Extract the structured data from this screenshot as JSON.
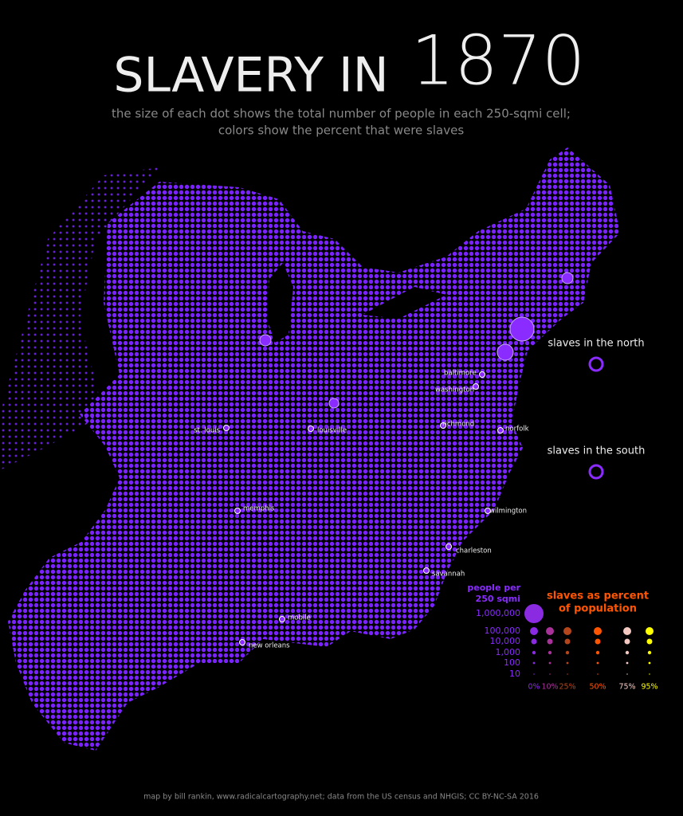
{
  "header": {
    "title": "SLAVERY IN",
    "year": "1870",
    "subtitle": [
      "the size of each dot shows the total number of people in each 250-sqmi cell;",
      "colors show the percent that were slaves"
    ]
  },
  "cities": [
    {
      "label": "baltimore"
    },
    {
      "label": "washington"
    },
    {
      "label": "richmond"
    },
    {
      "label": "norfolk"
    },
    {
      "label": "st. louis"
    },
    {
      "label": "louisville"
    },
    {
      "label": "memphis"
    },
    {
      "label": "wilmington"
    },
    {
      "label": "charleston"
    },
    {
      "label": "savannah"
    },
    {
      "label": "mobile"
    },
    {
      "label": "new orleans"
    }
  ],
  "side_legend": [
    {
      "label": "slaves in the north"
    },
    {
      "label": "slaves in the south"
    }
  ],
  "legend": {
    "size_title": [
      "people per",
      "250 sqmi"
    ],
    "sizes": [
      "1,000,000",
      "100,000",
      "10,000",
      "1,000",
      "100",
      "10"
    ],
    "color_title": [
      "slaves as percent",
      "of population"
    ],
    "colors": [
      {
        "label": "0%",
        "color": "#8a2be2"
      },
      {
        "label": "10%",
        "color": "#a8329a"
      },
      {
        "label": "25%",
        "color": "#b5461c"
      },
      {
        "label": "50%",
        "color": "#ff5500"
      },
      {
        "label": "75%",
        "color": "#f3c9c2"
      },
      {
        "label": "95%",
        "color": "#ffff00"
      }
    ]
  },
  "footer": "map by bill rankin, www.radicalcartography.net; data from the US census and NHGIS; CC BY-NC-SA 2016"
}
